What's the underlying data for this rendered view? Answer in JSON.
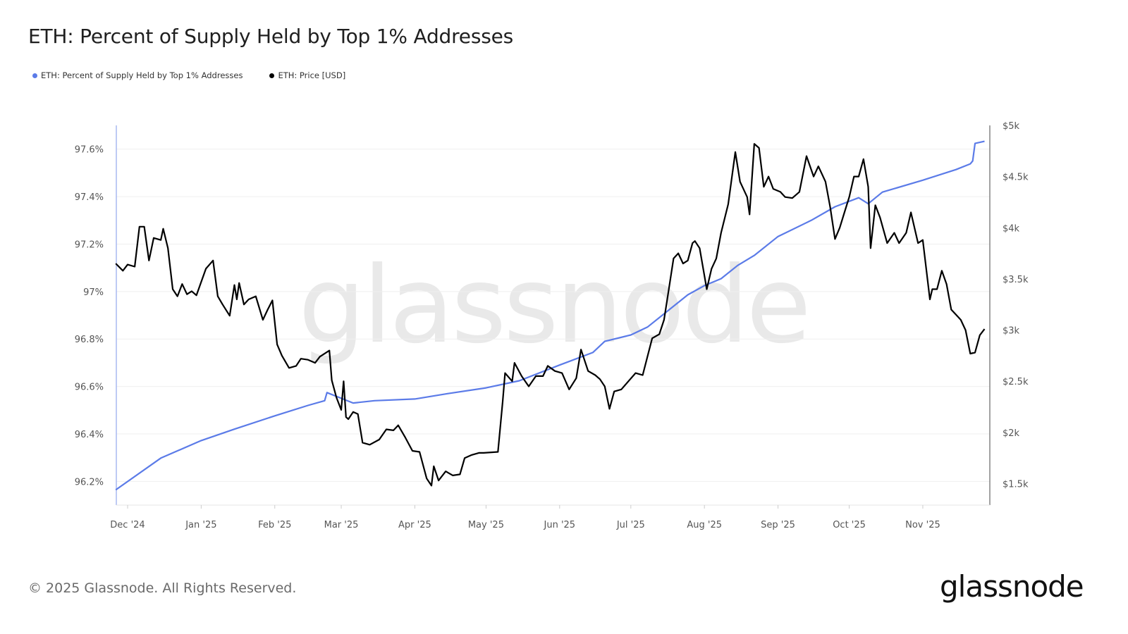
{
  "title": "ETH: Percent of Supply Held by Top 1% Addresses",
  "footer": "© 2025 Glassnode. All Rights Reserved.",
  "logo_text": "glassnode",
  "watermark": "glassnode",
  "legend": [
    {
      "label": "ETH: Percent of Supply Held by Top 1% Addresses",
      "color": "#5b7be8"
    },
    {
      "label": "ETH: Price [USD]",
      "color": "#000000"
    }
  ],
  "chart_data": {
    "type": "line",
    "title": "ETH: Percent of Supply Held by Top 1% Addresses",
    "grid": true,
    "legend_position": "top-left",
    "x_ticks": [
      "Dec '24",
      "Jan '25",
      "Feb '25",
      "Mar '25",
      "Apr '25",
      "May '25",
      "Jun '25",
      "Jul '25",
      "Aug '25",
      "Sep '25",
      "Oct '25",
      "Nov '25"
    ],
    "x_tick_dates": [
      "2024-12-01",
      "2025-01-01",
      "2025-02-01",
      "2025-03-01",
      "2025-04-01",
      "2025-05-01",
      "2025-06-01",
      "2025-07-01",
      "2025-08-01",
      "2025-09-01",
      "2025-10-01",
      "2025-11-01"
    ],
    "y_left": {
      "ticks": [
        "96.2%",
        "96.4%",
        "96.6%",
        "96.8%",
        "97%",
        "97.2%",
        "97.4%",
        "97.6%"
      ],
      "tick_values": [
        96.2,
        96.4,
        96.6,
        96.8,
        97.0,
        97.2,
        97.4,
        97.6
      ],
      "ylim": [
        96.1,
        97.7
      ]
    },
    "y_right": {
      "ticks": [
        "$1.5k",
        "$2k",
        "$2.5k",
        "$3k",
        "$3.5k",
        "$4k",
        "$4.5k",
        "$5k"
      ],
      "tick_values": [
        1500,
        2000,
        2500,
        3000,
        3500,
        4000,
        4500,
        5000
      ],
      "ylim": [
        1290,
        5000
      ],
      "scale": "linear"
    },
    "series": [
      {
        "name": "ETH: Percent of Supply Held by Top 1% Addresses",
        "axis": "left",
        "color": "#5b7be8",
        "points": [
          [
            "2024-11-26",
            96.164
          ],
          [
            "2024-12-15",
            96.298
          ],
          [
            "2025-01-01",
            96.372
          ],
          [
            "2025-01-15",
            96.42
          ],
          [
            "2025-02-01",
            96.476
          ],
          [
            "2025-02-15",
            96.52
          ],
          [
            "2025-02-22",
            96.54
          ],
          [
            "2025-02-23",
            96.574
          ],
          [
            "2025-03-01",
            96.55
          ],
          [
            "2025-03-06",
            96.53
          ],
          [
            "2025-03-15",
            96.54
          ],
          [
            "2025-04-01",
            96.547
          ],
          [
            "2025-04-15",
            96.57
          ],
          [
            "2025-05-01",
            96.594
          ],
          [
            "2025-05-15",
            96.624
          ],
          [
            "2025-06-01",
            96.69
          ],
          [
            "2025-06-15",
            96.743
          ],
          [
            "2025-06-20",
            96.79
          ],
          [
            "2025-07-01",
            96.817
          ],
          [
            "2025-07-08",
            96.85
          ],
          [
            "2025-07-15",
            96.906
          ],
          [
            "2025-07-25",
            96.986
          ],
          [
            "2025-08-01",
            97.025
          ],
          [
            "2025-08-08",
            97.054
          ],
          [
            "2025-08-15",
            97.11
          ],
          [
            "2025-08-22",
            97.152
          ],
          [
            "2025-09-01",
            97.232
          ],
          [
            "2025-09-15",
            97.3
          ],
          [
            "2025-09-25",
            97.357
          ],
          [
            "2025-10-05",
            97.395
          ],
          [
            "2025-10-09",
            97.37
          ],
          [
            "2025-10-15",
            97.419
          ],
          [
            "2025-11-01",
            97.469
          ],
          [
            "2025-11-15",
            97.514
          ],
          [
            "2025-11-21",
            97.538
          ],
          [
            "2025-11-22",
            97.55
          ],
          [
            "2025-11-23",
            97.624
          ],
          [
            "2025-11-27",
            97.633
          ]
        ]
      },
      {
        "name": "ETH: Price [USD]",
        "axis": "right",
        "color": "#000000",
        "points": [
          [
            "2024-11-26",
            3650
          ],
          [
            "2024-11-29",
            3580
          ],
          [
            "2024-12-01",
            3640
          ],
          [
            "2024-12-04",
            3620
          ],
          [
            "2024-12-06",
            4010
          ],
          [
            "2024-12-08",
            4010
          ],
          [
            "2024-12-10",
            3680
          ],
          [
            "2024-12-12",
            3900
          ],
          [
            "2024-12-15",
            3880
          ],
          [
            "2024-12-16",
            3990
          ],
          [
            "2024-12-18",
            3800
          ],
          [
            "2024-12-20",
            3400
          ],
          [
            "2024-12-22",
            3330
          ],
          [
            "2024-12-24",
            3450
          ],
          [
            "2024-12-26",
            3350
          ],
          [
            "2024-12-28",
            3380
          ],
          [
            "2024-12-30",
            3340
          ],
          [
            "2025-01-03",
            3600
          ],
          [
            "2025-01-06",
            3680
          ],
          [
            "2025-01-08",
            3330
          ],
          [
            "2025-01-10",
            3250
          ],
          [
            "2025-01-13",
            3140
          ],
          [
            "2025-01-15",
            3440
          ],
          [
            "2025-01-16",
            3300
          ],
          [
            "2025-01-17",
            3460
          ],
          [
            "2025-01-19",
            3250
          ],
          [
            "2025-01-21",
            3300
          ],
          [
            "2025-01-24",
            3330
          ],
          [
            "2025-01-27",
            3100
          ],
          [
            "2025-01-29",
            3200
          ],
          [
            "2025-01-31",
            3290
          ],
          [
            "2025-02-02",
            2860
          ],
          [
            "2025-02-04",
            2750
          ],
          [
            "2025-02-07",
            2630
          ],
          [
            "2025-02-10",
            2650
          ],
          [
            "2025-02-12",
            2720
          ],
          [
            "2025-02-15",
            2710
          ],
          [
            "2025-02-18",
            2680
          ],
          [
            "2025-02-20",
            2740
          ],
          [
            "2025-02-24",
            2800
          ],
          [
            "2025-02-25",
            2510
          ],
          [
            "2025-02-27",
            2340
          ],
          [
            "2025-03-01",
            2220
          ],
          [
            "2025-03-02",
            2500
          ],
          [
            "2025-03-03",
            2150
          ],
          [
            "2025-03-04",
            2130
          ],
          [
            "2025-03-06",
            2200
          ],
          [
            "2025-03-08",
            2180
          ],
          [
            "2025-03-10",
            1900
          ],
          [
            "2025-03-13",
            1880
          ],
          [
            "2025-03-17",
            1930
          ],
          [
            "2025-03-20",
            2030
          ],
          [
            "2025-03-23",
            2020
          ],
          [
            "2025-03-25",
            2070
          ],
          [
            "2025-03-28",
            1950
          ],
          [
            "2025-03-31",
            1820
          ],
          [
            "2025-04-03",
            1810
          ],
          [
            "2025-04-06",
            1550
          ],
          [
            "2025-04-08",
            1480
          ],
          [
            "2025-04-09",
            1670
          ],
          [
            "2025-04-11",
            1530
          ],
          [
            "2025-04-14",
            1620
          ],
          [
            "2025-04-17",
            1580
          ],
          [
            "2025-04-20",
            1590
          ],
          [
            "2025-04-22",
            1750
          ],
          [
            "2025-04-25",
            1780
          ],
          [
            "2025-04-28",
            1800
          ],
          [
            "2025-04-30",
            1800
          ],
          [
            "2025-05-06",
            1810
          ],
          [
            "2025-05-08",
            2300
          ],
          [
            "2025-05-09",
            2580
          ],
          [
            "2025-05-12",
            2500
          ],
          [
            "2025-05-13",
            2680
          ],
          [
            "2025-05-16",
            2550
          ],
          [
            "2025-05-19",
            2450
          ],
          [
            "2025-05-22",
            2550
          ],
          [
            "2025-05-25",
            2550
          ],
          [
            "2025-05-27",
            2650
          ],
          [
            "2025-05-30",
            2600
          ],
          [
            "2025-06-02",
            2580
          ],
          [
            "2025-06-05",
            2420
          ],
          [
            "2025-06-08",
            2530
          ],
          [
            "2025-06-10",
            2810
          ],
          [
            "2025-06-13",
            2600
          ],
          [
            "2025-06-16",
            2560
          ],
          [
            "2025-06-18",
            2520
          ],
          [
            "2025-06-20",
            2450
          ],
          [
            "2025-06-22",
            2230
          ],
          [
            "2025-06-24",
            2400
          ],
          [
            "2025-06-27",
            2420
          ],
          [
            "2025-06-30",
            2500
          ],
          [
            "2025-07-03",
            2580
          ],
          [
            "2025-07-06",
            2560
          ],
          [
            "2025-07-10",
            2920
          ],
          [
            "2025-07-13",
            2960
          ],
          [
            "2025-07-15",
            3100
          ],
          [
            "2025-07-17",
            3400
          ],
          [
            "2025-07-19",
            3700
          ],
          [
            "2025-07-21",
            3750
          ],
          [
            "2025-07-23",
            3650
          ],
          [
            "2025-07-25",
            3680
          ],
          [
            "2025-07-27",
            3850
          ],
          [
            "2025-07-28",
            3870
          ],
          [
            "2025-07-30",
            3800
          ],
          [
            "2025-08-02",
            3400
          ],
          [
            "2025-08-04",
            3600
          ],
          [
            "2025-08-06",
            3700
          ],
          [
            "2025-08-08",
            3950
          ],
          [
            "2025-08-11",
            4230
          ],
          [
            "2025-08-14",
            4740
          ],
          [
            "2025-08-16",
            4450
          ],
          [
            "2025-08-19",
            4300
          ],
          [
            "2025-08-20",
            4130
          ],
          [
            "2025-08-22",
            4820
          ],
          [
            "2025-08-24",
            4780
          ],
          [
            "2025-08-26",
            4400
          ],
          [
            "2025-08-28",
            4500
          ],
          [
            "2025-08-30",
            4380
          ],
          [
            "2025-09-02",
            4350
          ],
          [
            "2025-09-04",
            4300
          ],
          [
            "2025-09-07",
            4290
          ],
          [
            "2025-09-10",
            4350
          ],
          [
            "2025-09-13",
            4700
          ],
          [
            "2025-09-16",
            4500
          ],
          [
            "2025-09-18",
            4600
          ],
          [
            "2025-09-21",
            4450
          ],
          [
            "2025-09-23",
            4200
          ],
          [
            "2025-09-25",
            3890
          ],
          [
            "2025-09-27",
            4000
          ],
          [
            "2025-09-29",
            4150
          ],
          [
            "2025-10-01",
            4300
          ],
          [
            "2025-10-03",
            4500
          ],
          [
            "2025-10-05",
            4500
          ],
          [
            "2025-10-07",
            4670
          ],
          [
            "2025-10-09",
            4400
          ],
          [
            "2025-10-10",
            3800
          ],
          [
            "2025-10-12",
            4220
          ],
          [
            "2025-10-14",
            4100
          ],
          [
            "2025-10-17",
            3850
          ],
          [
            "2025-10-20",
            3950
          ],
          [
            "2025-10-22",
            3850
          ],
          [
            "2025-10-25",
            3950
          ],
          [
            "2025-10-27",
            4150
          ],
          [
            "2025-10-30",
            3850
          ],
          [
            "2025-11-01",
            3880
          ],
          [
            "2025-11-04",
            3300
          ],
          [
            "2025-11-05",
            3400
          ],
          [
            "2025-11-07",
            3400
          ],
          [
            "2025-11-09",
            3580
          ],
          [
            "2025-11-11",
            3450
          ],
          [
            "2025-11-13",
            3200
          ],
          [
            "2025-11-15",
            3150
          ],
          [
            "2025-11-17",
            3100
          ],
          [
            "2025-11-19",
            3000
          ],
          [
            "2025-11-21",
            2770
          ],
          [
            "2025-11-23",
            2780
          ],
          [
            "2025-11-25",
            2950
          ],
          [
            "2025-11-27",
            3010
          ]
        ]
      }
    ]
  }
}
